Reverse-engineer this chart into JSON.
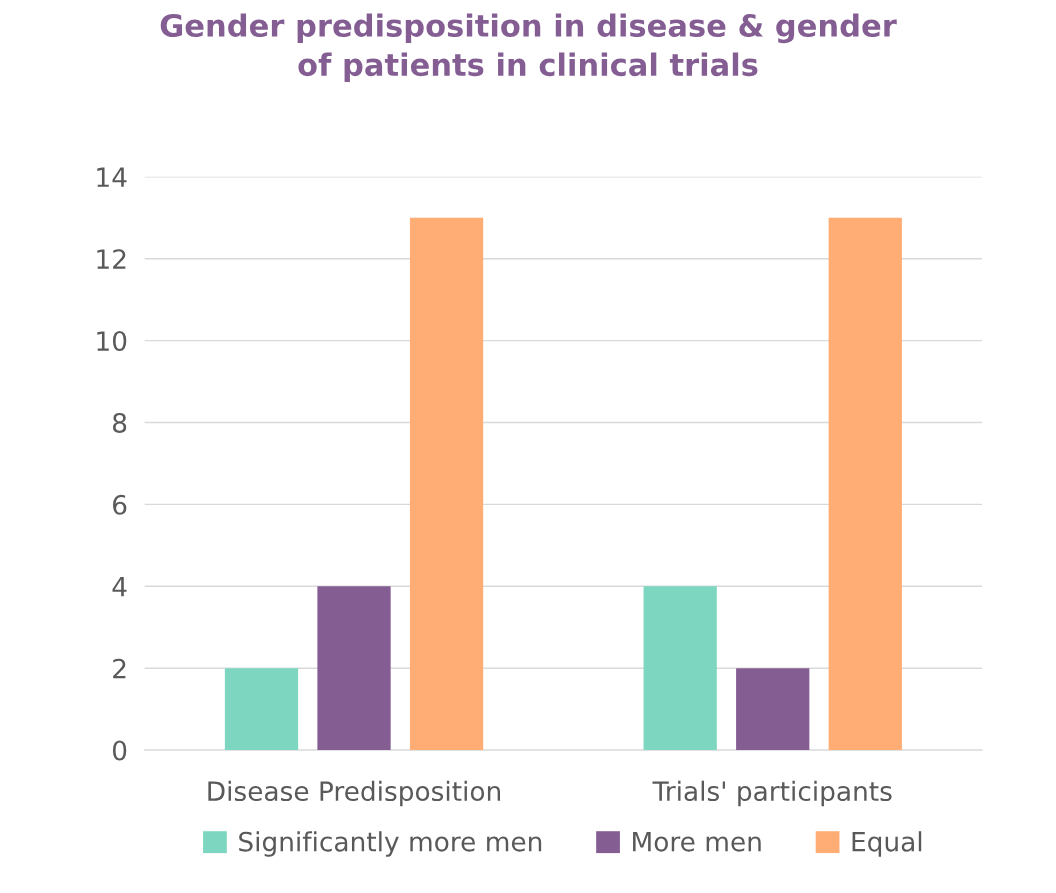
{
  "chart_data": {
    "type": "bar",
    "title": "Gender predisposition in disease & gender\nof patients in clinical trials",
    "categories": [
      "Disease Predisposition",
      "Trials' participants"
    ],
    "series": [
      {
        "name": "Significantly more men",
        "color": "#7dd6bf",
        "values": [
          2,
          4
        ]
      },
      {
        "name": "More men",
        "color": "#845e93",
        "values": [
          4,
          2
        ]
      },
      {
        "name": "Equal",
        "color": "#ffad75",
        "values": [
          13,
          13
        ]
      }
    ],
    "ylim": [
      0,
      14
    ],
    "yticks": [
      0,
      2,
      4,
      6,
      8,
      10,
      12,
      14
    ],
    "grid": "y",
    "legend": "bottom"
  }
}
